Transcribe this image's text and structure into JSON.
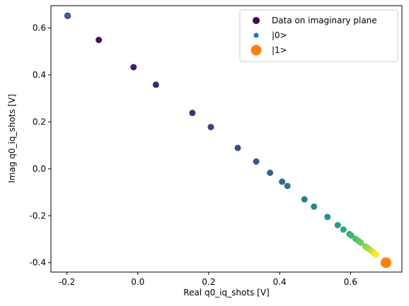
{
  "chart_data": {
    "type": "scatter",
    "xlabel": "Real q0_iq_shots [V]",
    "ylabel": "Imag q0_iq_shots [V]",
    "xlim": [
      -0.245,
      0.745
    ],
    "ylim": [
      -0.44,
      0.695
    ],
    "xticks": [
      "-0.2",
      "0.0",
      "0.2",
      "0.4",
      "0.6"
    ],
    "xtick_values": [
      -0.2,
      0.0,
      0.2,
      0.4,
      0.6
    ],
    "yticks": [
      "-0.4",
      "-0.2",
      "0.0",
      "0.2",
      "0.4",
      "0.6"
    ],
    "ytick_values": [
      -0.4,
      -0.2,
      0.0,
      0.2,
      0.4,
      0.6
    ],
    "grid": false,
    "legend_position": "top-right",
    "colormap": "viridis",
    "series": [
      {
        "name": "Data on imaginary plane",
        "color": "#440154",
        "points": [
          {
            "x": -0.198,
            "y": 0.652
          },
          {
            "x": -0.11,
            "y": 0.549
          },
          {
            "x": -0.012,
            "y": 0.433
          },
          {
            "x": 0.051,
            "y": 0.358
          },
          {
            "x": 0.154,
            "y": 0.238
          },
          {
            "x": 0.206,
            "y": 0.178
          },
          {
            "x": 0.282,
            "y": 0.089
          },
          {
            "x": 0.334,
            "y": 0.031
          },
          {
            "x": 0.373,
            "y": -0.017
          },
          {
            "x": 0.407,
            "y": -0.055
          },
          {
            "x": 0.422,
            "y": -0.073
          },
          {
            "x": 0.47,
            "y": -0.13
          },
          {
            "x": 0.497,
            "y": -0.161
          },
          {
            "x": 0.535,
            "y": -0.205
          },
          {
            "x": 0.564,
            "y": -0.24
          },
          {
            "x": 0.58,
            "y": -0.259
          },
          {
            "x": 0.597,
            "y": -0.278
          },
          {
            "x": 0.602,
            "y": -0.284
          },
          {
            "x": 0.614,
            "y": -0.298
          },
          {
            "x": 0.622,
            "y": -0.307
          },
          {
            "x": 0.629,
            "y": -0.315
          },
          {
            "x": 0.642,
            "y": -0.331
          },
          {
            "x": 0.648,
            "y": -0.337
          },
          {
            "x": 0.655,
            "y": -0.345
          },
          {
            "x": 0.661,
            "y": -0.352
          },
          {
            "x": 0.667,
            "y": -0.359
          },
          {
            "x": 0.672,
            "y": -0.365
          }
        ]
      },
      {
        "name": "|0>",
        "color": "#1f77b4",
        "points": [
          {
            "x": -0.198,
            "y": 0.652
          }
        ]
      },
      {
        "name": "|1>",
        "color": "#ff7f0e",
        "points": [
          {
            "x": 0.7,
            "y": -0.4
          }
        ]
      }
    ]
  }
}
